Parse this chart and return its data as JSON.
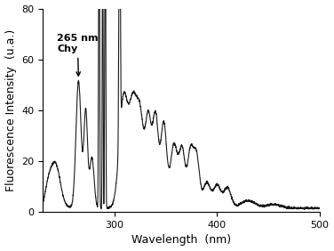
{
  "title": "",
  "xlabel": "Wavelength  (nm)",
  "ylabel": "Fluorescence Intensity  (u.a.)",
  "xlim": [
    230,
    500
  ],
  "ylim": [
    0,
    80
  ],
  "xticks": [
    300,
    400,
    500
  ],
  "yticks": [
    0,
    20,
    40,
    60,
    80
  ],
  "annotation_text": "265 nm\nChy",
  "line_color": "#1a1a1a",
  "line_width": 0.8,
  "background_color": "#ffffff",
  "figsize": [
    3.76,
    2.82
  ],
  "dpi": 100
}
